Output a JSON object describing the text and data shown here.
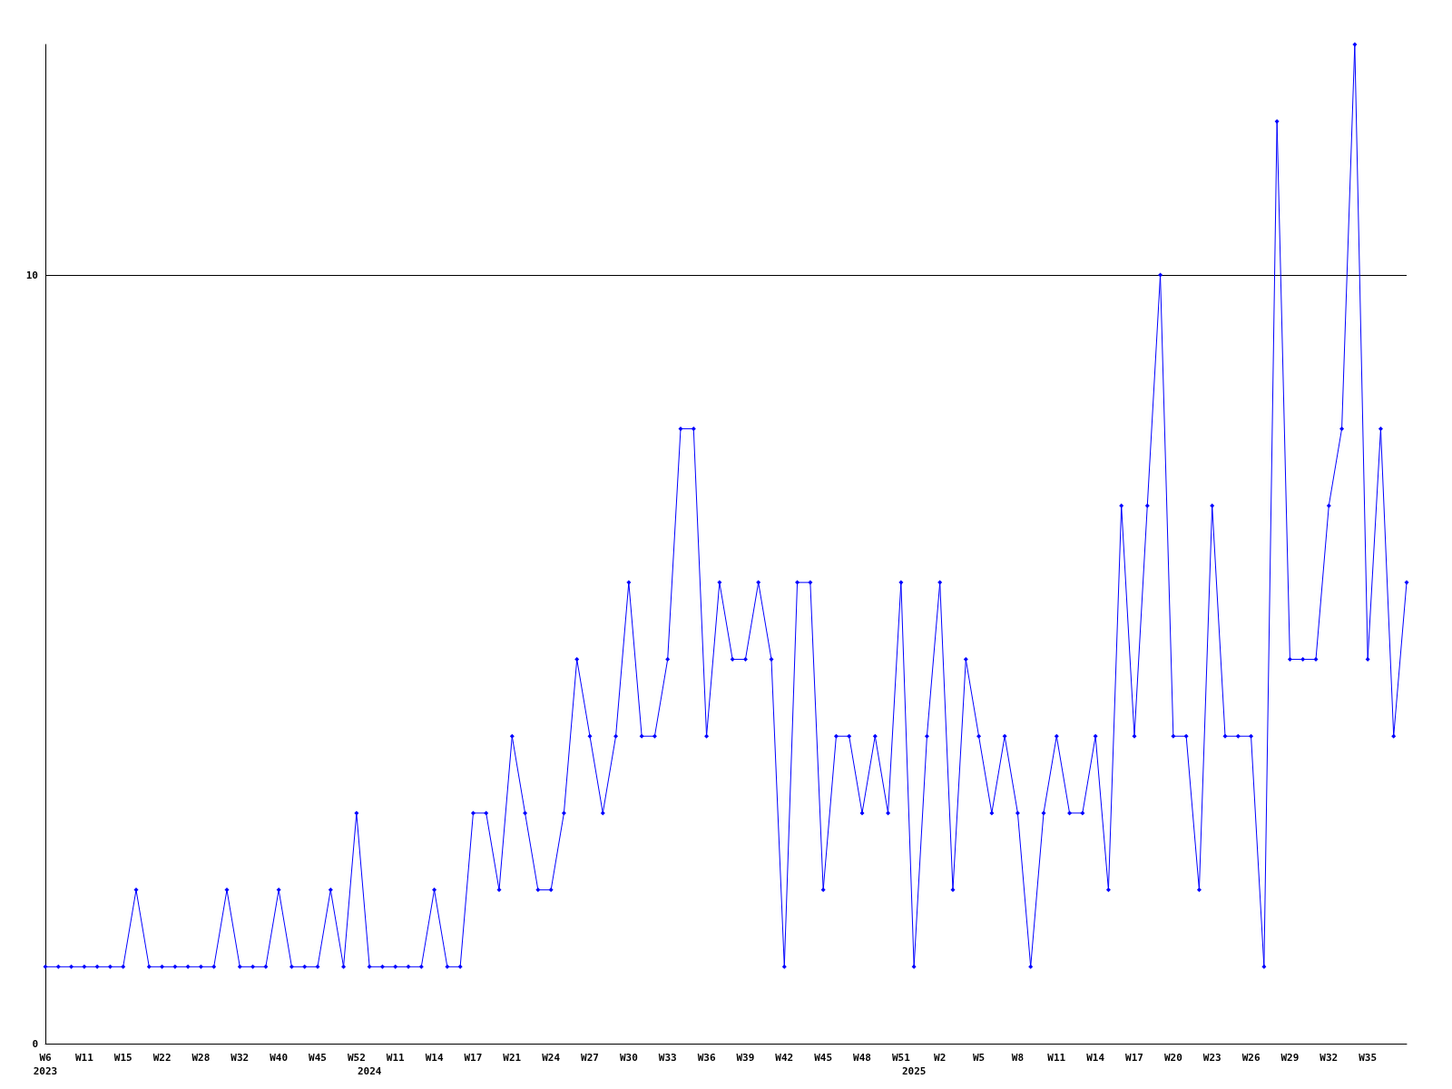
{
  "chart_data": {
    "type": "line",
    "categories": [
      "W6\n2023",
      null,
      null,
      "W11",
      null,
      null,
      "W15",
      null,
      null,
      "W22",
      null,
      null,
      "W28",
      null,
      null,
      "W32",
      null,
      null,
      "W40",
      null,
      null,
      "W45",
      null,
      null,
      "W52",
      "\n2024",
      null,
      "W11",
      null,
      null,
      "W14",
      null,
      null,
      "W17",
      null,
      null,
      "W21",
      null,
      null,
      "W24",
      null,
      null,
      "W27",
      null,
      null,
      "W30",
      null,
      null,
      "W33",
      null,
      null,
      "W36",
      null,
      null,
      "W39",
      null,
      null,
      "W42",
      null,
      null,
      "W45",
      null,
      null,
      "W48",
      null,
      null,
      "W51",
      "\n2025",
      null,
      "W2",
      null,
      null,
      "W5",
      null,
      null,
      "W8",
      null,
      null,
      "W11",
      null,
      null,
      "W14",
      null,
      null,
      "W17",
      null,
      null,
      "W20",
      null,
      null,
      "W23",
      null,
      null,
      "W26",
      null,
      null,
      "W29",
      null,
      null,
      "W32",
      null,
      null,
      "W35",
      null,
      null,
      null
    ],
    "series": [
      {
        "color": "#0000ff",
        "values": [
          1,
          1,
          1,
          1,
          1,
          1,
          1,
          2,
          1,
          1,
          1,
          1,
          1,
          1,
          2,
          1,
          1,
          1,
          2,
          1,
          1,
          1,
          2,
          1,
          3,
          1,
          1,
          1,
          1,
          1,
          2,
          1,
          1,
          3,
          3,
          2,
          4,
          3,
          2,
          2,
          3,
          5,
          4,
          3,
          4,
          6,
          4,
          4,
          5,
          8,
          8,
          4,
          6,
          5,
          5,
          6,
          5,
          1,
          6,
          6,
          2,
          4,
          4,
          3,
          4,
          3,
          6,
          1,
          4,
          6,
          2,
          5,
          4,
          3,
          4,
          3,
          1,
          3,
          4,
          3,
          3,
          4,
          2,
          7,
          4,
          7,
          10,
          4,
          4,
          2,
          7,
          4,
          4,
          4,
          1,
          12,
          5,
          5,
          5,
          7,
          8,
          13,
          5,
          8,
          4,
          6
        ]
      }
    ],
    "ylim": [
      0,
      13
    ],
    "yticks": [
      0,
      10
    ],
    "grid": "y",
    "marker": "diamond",
    "line_style": "solid"
  }
}
